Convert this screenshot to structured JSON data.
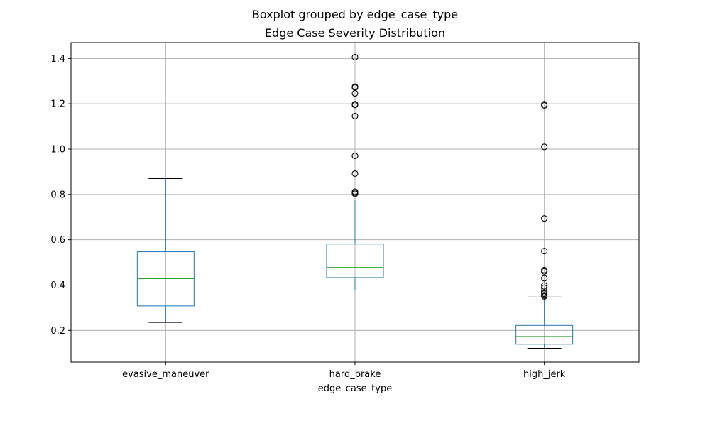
{
  "chart_data": {
    "type": "box",
    "suptitle": "Boxplot grouped by edge_case_type",
    "title": "Edge Case Severity Distribution",
    "xlabel": "edge_case_type",
    "ylabel": "",
    "ylim": [
      0.06,
      1.47
    ],
    "yticks": [
      0.2,
      0.4,
      0.6,
      0.8,
      1.0,
      1.2,
      1.4
    ],
    "ytick_labels": [
      "0.2",
      "0.4",
      "0.6",
      "0.8",
      "1.0",
      "1.2",
      "1.4"
    ],
    "grid": true,
    "categories": [
      "evasive_maneuver",
      "hard_brake",
      "high_jerk"
    ],
    "boxes": [
      {
        "whisker_low": 0.235,
        "q1": 0.308,
        "median": 0.428,
        "q3": 0.547,
        "whisker_high": 0.87,
        "outliers": []
      },
      {
        "whisker_low": 0.378,
        "q1": 0.433,
        "median": 0.478,
        "q3": 0.581,
        "whisker_high": 0.776,
        "outliers": [
          0.803,
          0.808,
          0.812,
          0.892,
          0.97,
          1.146,
          1.195,
          1.198,
          1.246,
          1.272,
          1.275,
          1.406
        ]
      },
      {
        "whisker_low": 0.121,
        "q1": 0.139,
        "median": 0.173,
        "q3": 0.222,
        "whisker_high": 0.347,
        "outliers": [
          0.35,
          0.355,
          0.362,
          0.368,
          0.375,
          0.388,
          0.398,
          0.43,
          0.46,
          0.466,
          0.55,
          0.694,
          1.01,
          1.193,
          1.198
        ]
      }
    ],
    "colors": {
      "box": "#1f77b4",
      "median": "#2ca02c",
      "whisker_cap": "#000000",
      "outlier_edge": "#000000",
      "grid": "#b0b0b0"
    }
  }
}
